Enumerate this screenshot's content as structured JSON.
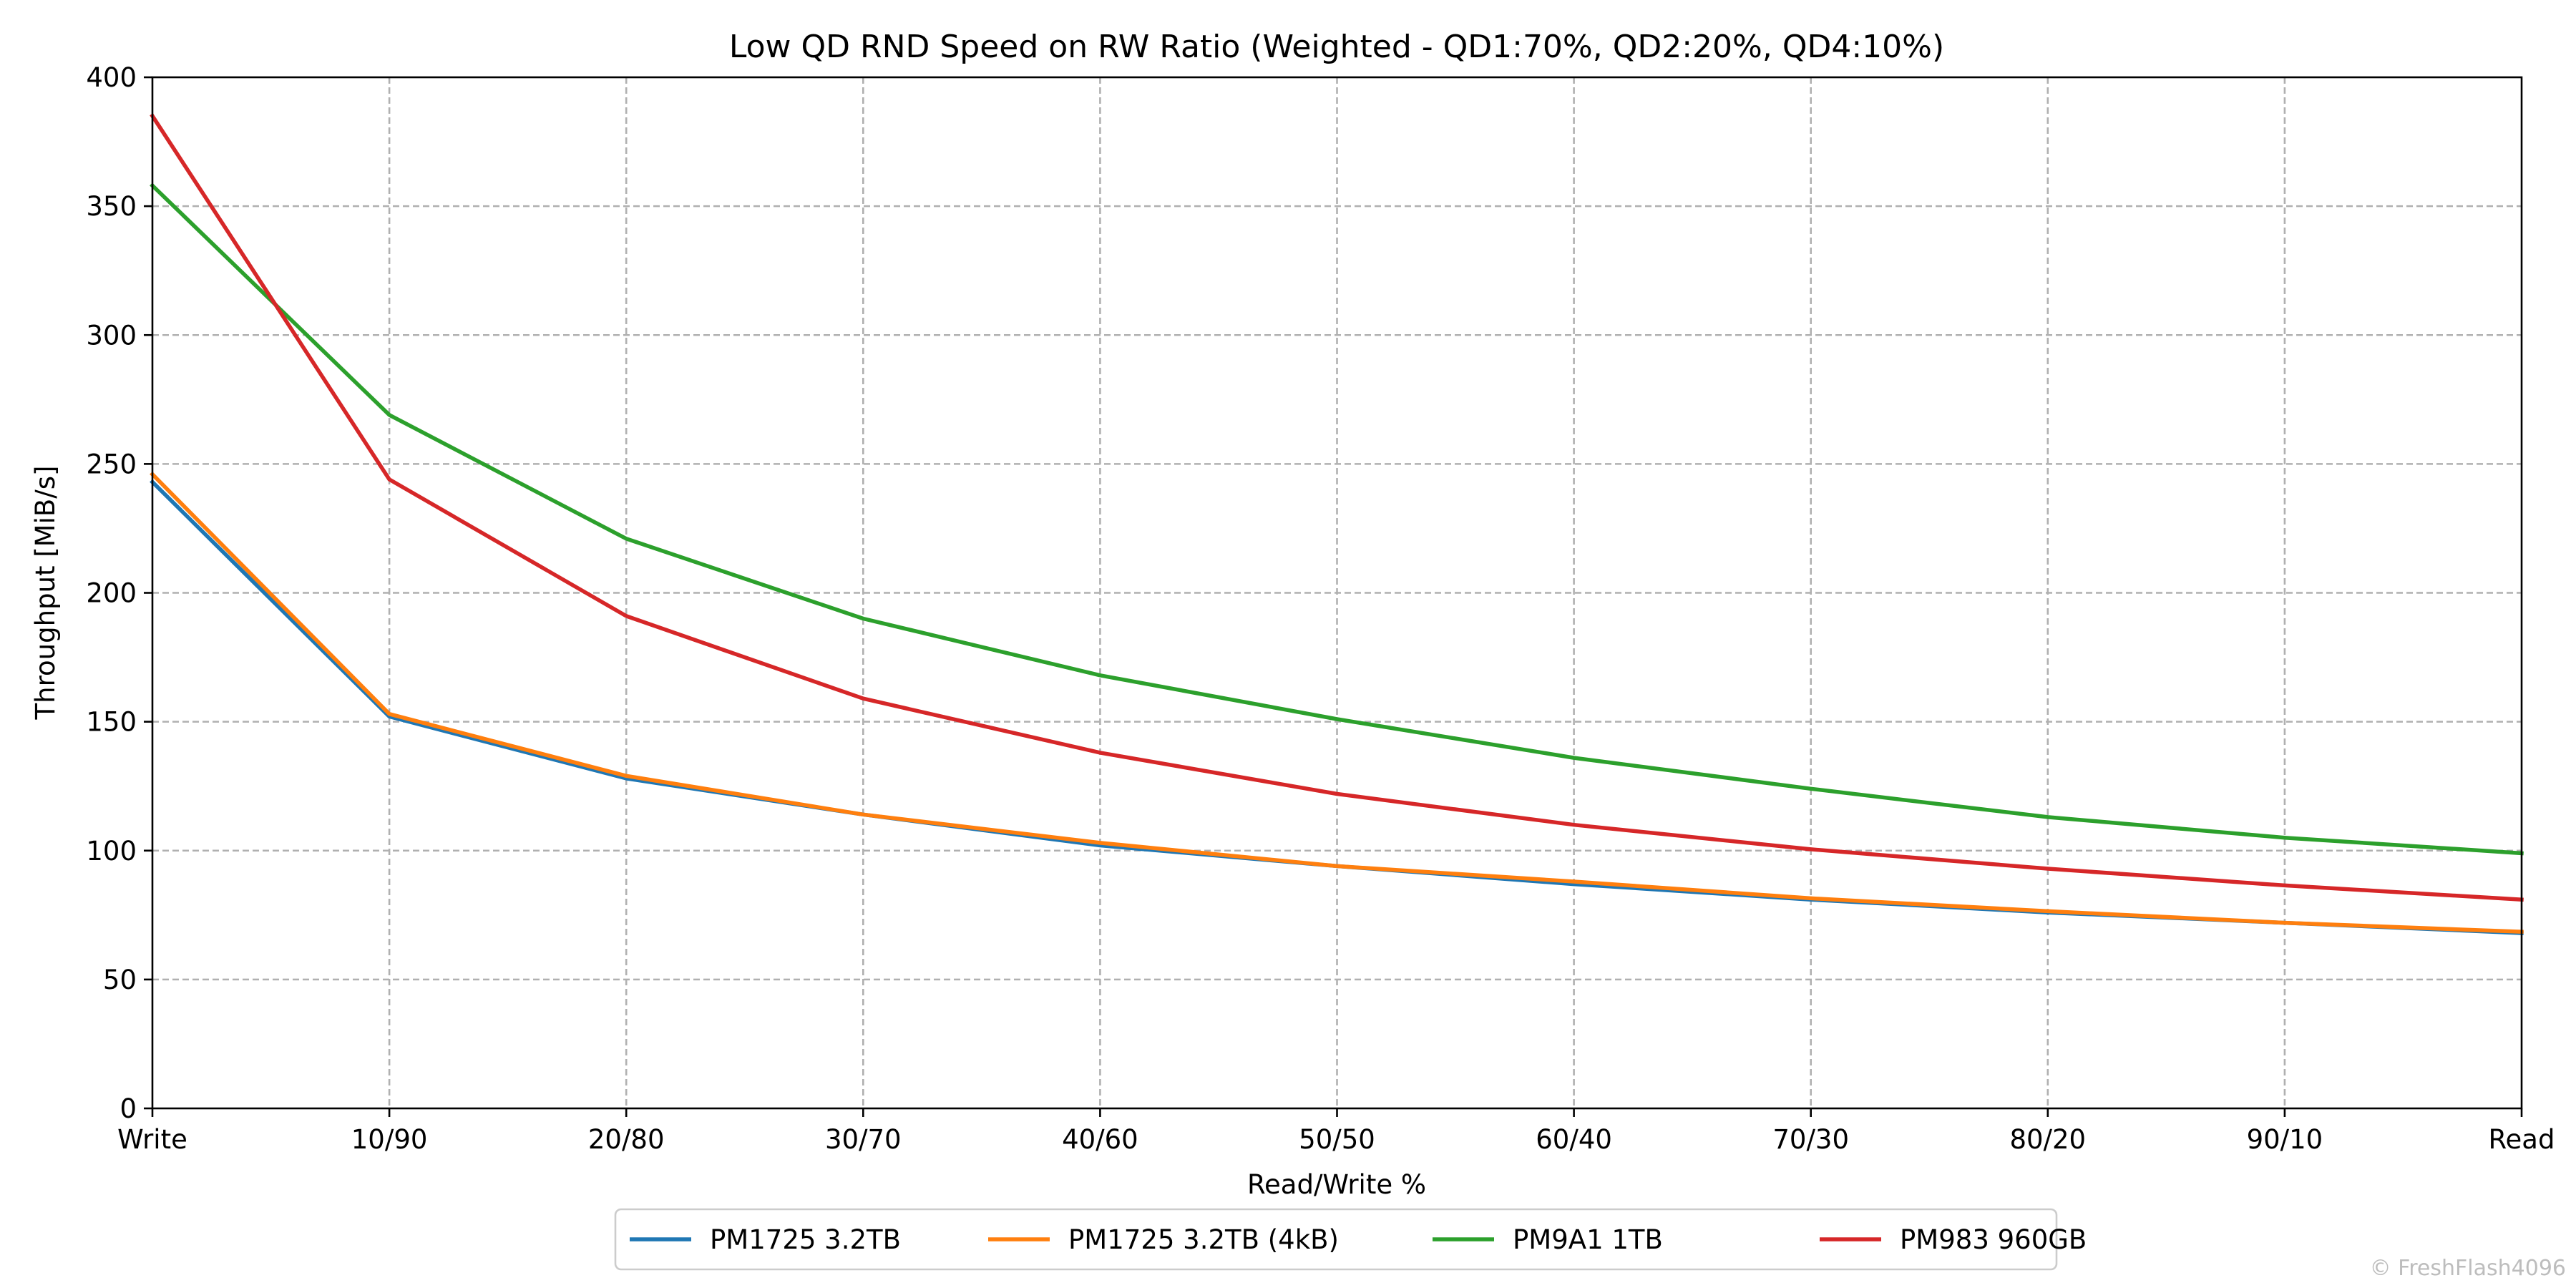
{
  "chart_data": {
    "type": "line",
    "title": "Low QD RND Speed on RW Ratio (Weighted - QD1:70%, QD2:20%, QD4:10%)",
    "xlabel": "Read/Write %",
    "ylabel": "Throughput [MiB/s]",
    "categories": [
      "Write",
      "10/90",
      "20/80",
      "30/70",
      "40/60",
      "50/50",
      "60/40",
      "70/30",
      "80/20",
      "90/10",
      "Read"
    ],
    "ylim": [
      0,
      400
    ],
    "yticks": [
      0,
      50,
      100,
      150,
      200,
      250,
      300,
      350,
      400
    ],
    "grid": true,
    "legend_position": "bottom-center",
    "series": [
      {
        "name": "PM1725 3.2TB",
        "color": "#1f77b4",
        "values": [
          243,
          152,
          128,
          114,
          102,
          94,
          87,
          81,
          76,
          72,
          68
        ]
      },
      {
        "name": "PM1725 3.2TB (4kB)",
        "color": "#ff7f0e",
        "values": [
          246,
          153,
          129,
          114,
          103,
          94,
          88,
          81.5,
          76.5,
          72,
          68.5
        ]
      },
      {
        "name": "PM9A1 1TB",
        "color": "#2ca02c",
        "values": [
          358,
          269,
          221,
          190,
          168,
          151,
          136,
          124,
          113,
          105,
          99
        ]
      },
      {
        "name": "PM983 960GB",
        "color": "#d62728",
        "values": [
          385,
          244,
          191,
          159,
          138,
          122,
          110,
          100.5,
          93,
          86.5,
          81
        ]
      }
    ]
  },
  "watermark": "© FreshFlash4096"
}
